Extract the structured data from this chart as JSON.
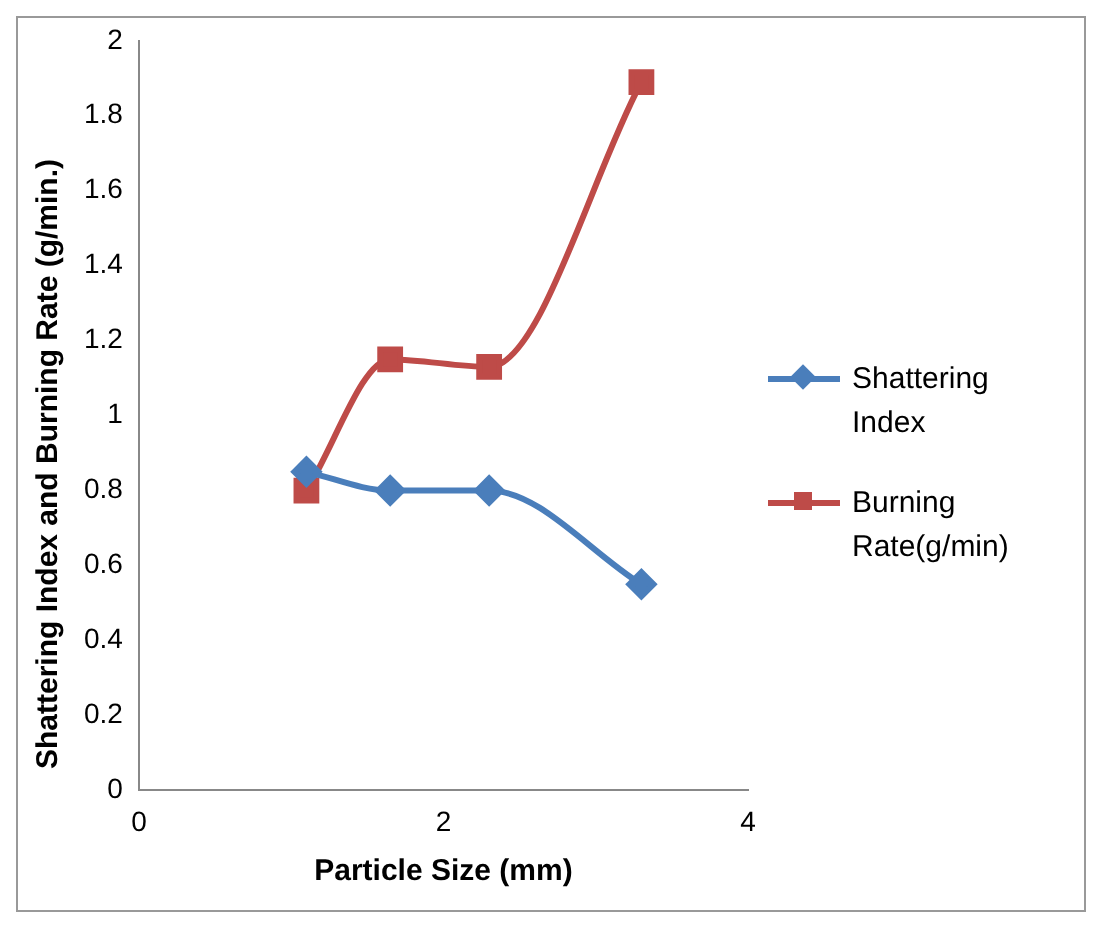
{
  "chart_data": {
    "type": "line",
    "xlabel": "Particle Size (mm)",
    "ylabel": "Shattering Index and Burning Rate (g/min.)",
    "xlim": [
      0,
      4
    ],
    "xticks": [
      0,
      2,
      4
    ],
    "ylim": [
      0,
      2
    ],
    "yticks": [
      0,
      0.2,
      0.4,
      0.6,
      0.8,
      1,
      1.2,
      1.4,
      1.6,
      1.8,
      2
    ],
    "x": [
      1.1,
      1.65,
      2.3,
      3.3
    ],
    "grid": false,
    "legend": "right",
    "series": [
      {
        "name": "Shattering Index",
        "color": "#4a7ebb",
        "marker": "diamond",
        "values": [
          0.85,
          0.8,
          0.8,
          0.55
        ]
      },
      {
        "name": "Burning Rate(g/min)",
        "color": "#be4b48",
        "marker": "square",
        "values": [
          0.8,
          1.15,
          1.13,
          1.89
        ]
      }
    ]
  }
}
